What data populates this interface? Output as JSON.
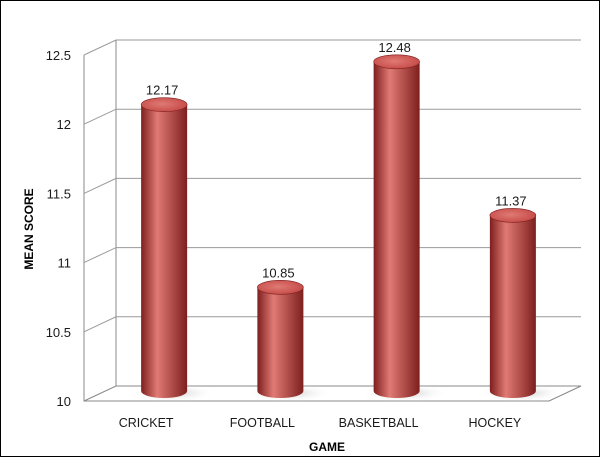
{
  "chart_data": {
    "type": "bar",
    "title": "",
    "xlabel": "GAME",
    "ylabel": "MEAN SCORE",
    "categories": [
      "CRICKET",
      "FOOTBALL",
      "BASKETBALL",
      "HOCKEY"
    ],
    "values": [
      12.17,
      10.85,
      12.48,
      11.37
    ],
    "data_labels": [
      "12.17",
      "10.85",
      "12.48",
      "11.37"
    ],
    "ylim": [
      10,
      12.5
    ],
    "yticks": [
      "10",
      "10.5",
      "11",
      "11.5",
      "12",
      "12.5"
    ],
    "grid": true,
    "legend": "none",
    "style": "3d-cylinder",
    "bar_color": "#c0413f",
    "bar_highlight": "#e07a74",
    "bar_shadow": "#7d1f1e"
  }
}
